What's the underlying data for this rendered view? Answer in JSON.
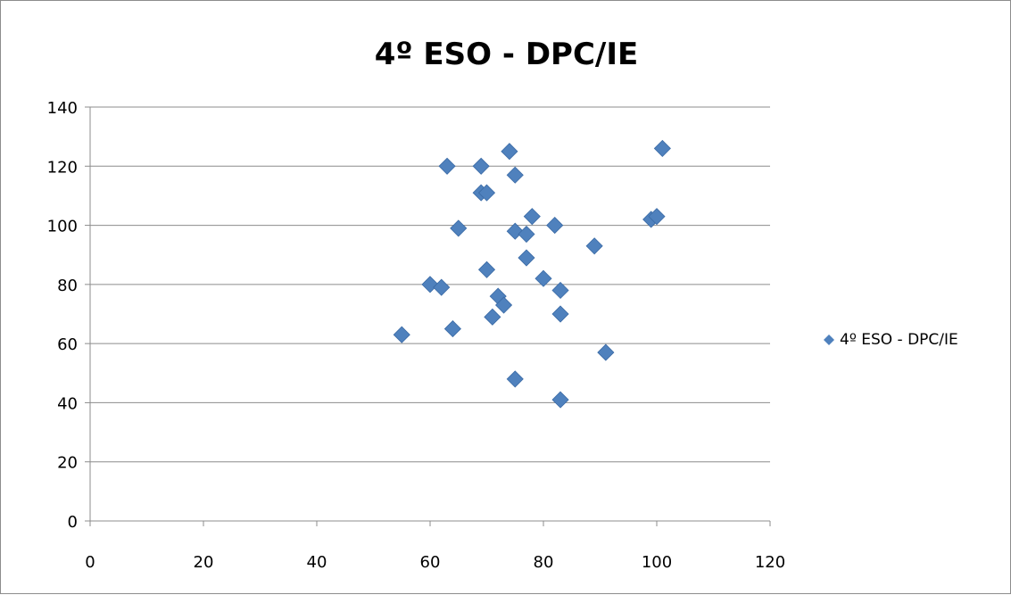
{
  "chart_data": {
    "type": "scatter",
    "title": "4º ESO - DPC/IE",
    "xlabel": "",
    "ylabel": "",
    "xlim": [
      0,
      120
    ],
    "ylim": [
      0,
      140
    ],
    "x_ticks": [
      "0",
      "20",
      "40",
      "60",
      "80",
      "100",
      "120"
    ],
    "y_ticks": [
      "0",
      "20",
      "40",
      "60",
      "80",
      "100",
      "120",
      "140"
    ],
    "grid": "horizontal",
    "legend_position": "right",
    "series": [
      {
        "name": "4º ESO - DPC/IE",
        "color": "#4f81bd",
        "marker": "diamond",
        "points": [
          {
            "x": 55,
            "y": 63
          },
          {
            "x": 60,
            "y": 80
          },
          {
            "x": 62,
            "y": 79
          },
          {
            "x": 63,
            "y": 120
          },
          {
            "x": 64,
            "y": 65
          },
          {
            "x": 65,
            "y": 99
          },
          {
            "x": 69,
            "y": 120
          },
          {
            "x": 69,
            "y": 111
          },
          {
            "x": 70,
            "y": 111
          },
          {
            "x": 70,
            "y": 85
          },
          {
            "x": 71,
            "y": 69
          },
          {
            "x": 72,
            "y": 76
          },
          {
            "x": 73,
            "y": 73
          },
          {
            "x": 74,
            "y": 125
          },
          {
            "x": 75,
            "y": 117
          },
          {
            "x": 75,
            "y": 98
          },
          {
            "x": 75,
            "y": 48
          },
          {
            "x": 77,
            "y": 97
          },
          {
            "x": 77,
            "y": 89
          },
          {
            "x": 78,
            "y": 103
          },
          {
            "x": 80,
            "y": 82
          },
          {
            "x": 82,
            "y": 100
          },
          {
            "x": 83,
            "y": 78
          },
          {
            "x": 83,
            "y": 70
          },
          {
            "x": 83,
            "y": 41
          },
          {
            "x": 89,
            "y": 93
          },
          {
            "x": 91,
            "y": 57
          },
          {
            "x": 99,
            "y": 102
          },
          {
            "x": 100,
            "y": 103
          },
          {
            "x": 101,
            "y": 126
          }
        ]
      }
    ]
  }
}
